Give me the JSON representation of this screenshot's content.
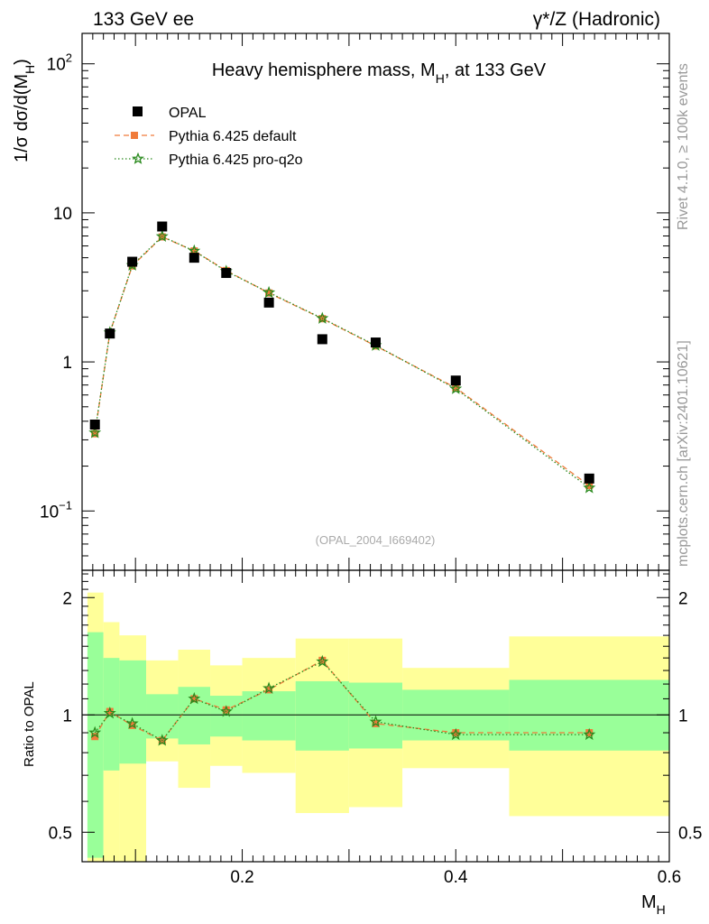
{
  "header": {
    "left": "133 GeV ee",
    "right": "γ*/Z (Hadronic)"
  },
  "side_labels": {
    "rivet": "Rivet 4.1.0, ≥ 100k events",
    "mcplots": "mcplots.cern.ch [arXiv:2401.10621]"
  },
  "chart_data": [
    {
      "type": "scatter",
      "panel": "main",
      "title": "Heavy hemisphere mass, M_H, at 133 GeV",
      "title_parts": {
        "pre": "Heavy hemisphere mass, M",
        "sub": "H",
        "post": ", at 133 GeV"
      },
      "ylabel": "1/σ  dσ/d(M_H)",
      "ylabel_parts": {
        "pre": "1/σ  dσ/d(M",
        "sub": "H",
        "post": ")"
      },
      "yscale": "log",
      "ylim": [
        0.04,
        160
      ],
      "xlim": [
        0.05,
        0.6
      ],
      "y_tick_labels": [
        {
          "value": 100,
          "base": "10",
          "exp": "2"
        },
        {
          "value": 10,
          "text": "10"
        },
        {
          "value": 1,
          "text": "1"
        },
        {
          "value": 0.1,
          "base": "10",
          "exp": "−1"
        }
      ],
      "watermark": "(OPAL_2004_I669402)",
      "legend_position": "top-left",
      "series": [
        {
          "name": "OPAL",
          "style": "data",
          "color": "#000000",
          "x": [
            0.062,
            0.076,
            0.097,
            0.125,
            0.155,
            0.185,
            0.225,
            0.275,
            0.325,
            0.4,
            0.525
          ],
          "values": [
            0.38,
            1.55,
            4.7,
            8.1,
            5.0,
            3.95,
            2.5,
            1.42,
            1.35,
            0.75,
            0.165
          ]
        },
        {
          "name": "Pythia 6.425 default",
          "style": "dashed",
          "color": "#f07b3a",
          "x": [
            0.062,
            0.076,
            0.097,
            0.125,
            0.155,
            0.185,
            0.225,
            0.275,
            0.325,
            0.4,
            0.525
          ],
          "values": [
            0.33,
            1.57,
            4.4,
            6.9,
            5.55,
            4.1,
            2.9,
            1.95,
            1.28,
            0.67,
            0.148
          ]
        },
        {
          "name": "Pythia 6.425 pro-q2o",
          "style": "dotted",
          "color": "#2a8a1e",
          "x": [
            0.062,
            0.076,
            0.097,
            0.125,
            0.155,
            0.185,
            0.225,
            0.275,
            0.325,
            0.4,
            0.525
          ],
          "values": [
            0.335,
            1.57,
            4.45,
            6.95,
            5.55,
            4.05,
            2.92,
            1.96,
            1.29,
            0.66,
            0.143
          ]
        }
      ]
    },
    {
      "type": "line",
      "panel": "ratio",
      "ylabel": "Ratio to OPAL",
      "xlabel": "M_H",
      "xlabel_parts": {
        "pre": "M",
        "sub": "H"
      },
      "yscale": "log",
      "ylim": [
        0.42,
        2.35
      ],
      "xlim": [
        0.05,
        0.6
      ],
      "y_tick_labels": [
        {
          "value": 2,
          "text": "2"
        },
        {
          "value": 1,
          "text": "1"
        },
        {
          "value": 0.5,
          "text": "0.5"
        }
      ],
      "x_tick_labels": [
        {
          "value": 0.2,
          "text": "0.2"
        },
        {
          "value": 0.4,
          "text": "0.4"
        },
        {
          "value": 0.6,
          "text": "0.6"
        }
      ],
      "band_colors": {
        "inner": "#99ff99",
        "outer": "#ffff99"
      },
      "bins": [
        {
          "lo": 0.055,
          "hi": 0.07,
          "inner": [
            0.43,
            1.63
          ],
          "outer": [
            0.34,
            2.06
          ]
        },
        {
          "lo": 0.07,
          "hi": 0.085,
          "inner": [
            0.72,
            1.4
          ],
          "outer": [
            0.37,
            1.73
          ]
        },
        {
          "lo": 0.085,
          "hi": 0.11,
          "inner": [
            0.75,
            1.38
          ],
          "outer": [
            0.36,
            1.6
          ]
        },
        {
          "lo": 0.11,
          "hi": 0.14,
          "inner": [
            0.87,
            1.13
          ],
          "outer": [
            0.76,
            1.38
          ]
        },
        {
          "lo": 0.14,
          "hi": 0.17,
          "inner": [
            0.84,
            1.18
          ],
          "outer": [
            0.65,
            1.47
          ]
        },
        {
          "lo": 0.17,
          "hi": 0.2,
          "inner": [
            0.88,
            1.12
          ],
          "outer": [
            0.74,
            1.34
          ]
        },
        {
          "lo": 0.2,
          "hi": 0.25,
          "inner": [
            0.86,
            1.15
          ],
          "outer": [
            0.71,
            1.4
          ]
        },
        {
          "lo": 0.25,
          "hi": 0.3,
          "inner": [
            0.81,
            1.22
          ],
          "outer": [
            0.56,
            1.57
          ]
        },
        {
          "lo": 0.3,
          "hi": 0.35,
          "inner": [
            0.82,
            1.21
          ],
          "outer": [
            0.58,
            1.57
          ]
        },
        {
          "lo": 0.35,
          "hi": 0.45,
          "inner": [
            0.86,
            1.16
          ],
          "outer": [
            0.73,
            1.32
          ]
        },
        {
          "lo": 0.45,
          "hi": 0.6,
          "inner": [
            0.81,
            1.23
          ],
          "outer": [
            0.55,
            1.59
          ]
        }
      ],
      "series": [
        {
          "name": "Pythia 6.425 default",
          "style": "dashed",
          "color": "#f07b3a",
          "x": [
            0.062,
            0.076,
            0.097,
            0.125,
            0.155,
            0.185,
            0.225,
            0.275,
            0.325,
            0.4,
            0.525
          ],
          "values": [
            0.88,
            1.02,
            0.94,
            0.86,
            1.1,
            1.03,
            1.16,
            1.38,
            0.95,
            0.9,
            0.9
          ]
        },
        {
          "name": "Pythia 6.425 pro-q2o",
          "style": "dotted",
          "color": "#2a8a1e",
          "x": [
            0.062,
            0.076,
            0.097,
            0.125,
            0.155,
            0.185,
            0.225,
            0.275,
            0.325,
            0.4,
            0.525
          ],
          "values": [
            0.9,
            1.01,
            0.95,
            0.86,
            1.1,
            1.02,
            1.17,
            1.37,
            0.96,
            0.89,
            0.89
          ]
        }
      ]
    }
  ]
}
